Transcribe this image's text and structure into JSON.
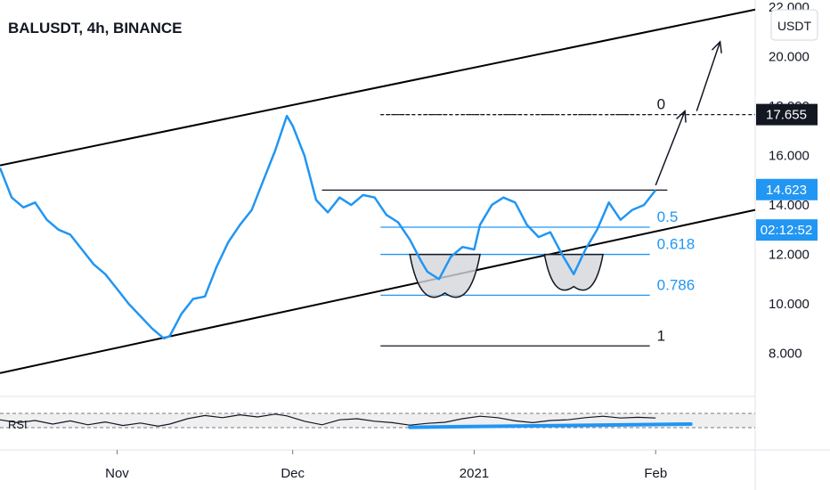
{
  "chart_data": {
    "type": "line",
    "title": "BALUSDT, 4h, BINANCE",
    "currency": "USDT",
    "ylim": [
      6.4,
      22.0
    ],
    "xlim": [
      "2020-10-12",
      "2021-02-18"
    ],
    "yticks": [
      {
        "v": 8,
        "label": "8.000"
      },
      {
        "v": 10,
        "label": "10.000"
      },
      {
        "v": 12,
        "label": "12.000"
      },
      {
        "v": 14,
        "label": "14.000"
      },
      {
        "v": 16,
        "label": "16.000"
      },
      {
        "v": 18,
        "label": "18.000"
      },
      {
        "v": 20,
        "label": "20.000"
      },
      {
        "v": 22,
        "label": "22.000"
      }
    ],
    "xticks": [
      {
        "date": "2020-11-01",
        "label": "Nov"
      },
      {
        "date": "2020-12-01",
        "label": "Dec"
      },
      {
        "date": "2021-01-01",
        "label": "2021"
      },
      {
        "date": "2021-02-01",
        "label": "Feb"
      }
    ],
    "series": [
      {
        "color": "#2196f3",
        "points": [
          [
            "2020-10-12",
            15.5
          ],
          [
            "2020-10-14",
            14.3
          ],
          [
            "2020-10-16",
            13.9
          ],
          [
            "2020-10-18",
            14.1
          ],
          [
            "2020-10-20",
            13.4
          ],
          [
            "2020-10-22",
            13.0
          ],
          [
            "2020-10-24",
            12.8
          ],
          [
            "2020-10-26",
            12.2
          ],
          [
            "2020-10-28",
            11.6
          ],
          [
            "2020-10-30",
            11.2
          ],
          [
            "2020-11-01",
            10.6
          ],
          [
            "2020-11-03",
            10.0
          ],
          [
            "2020-11-05",
            9.5
          ],
          [
            "2020-11-07",
            9.0
          ],
          [
            "2020-11-09",
            8.6
          ],
          [
            "2020-11-10",
            8.7
          ],
          [
            "2020-11-12",
            9.6
          ],
          [
            "2020-11-14",
            10.2
          ],
          [
            "2020-11-16",
            10.3
          ],
          [
            "2020-11-18",
            11.5
          ],
          [
            "2020-11-20",
            12.5
          ],
          [
            "2020-11-22",
            13.2
          ],
          [
            "2020-11-24",
            13.8
          ],
          [
            "2020-11-26",
            15.0
          ],
          [
            "2020-11-28",
            16.2
          ],
          [
            "2020-11-30",
            17.6
          ],
          [
            "2020-12-01",
            17.2
          ],
          [
            "2020-12-03",
            16.0
          ],
          [
            "2020-12-05",
            14.2
          ],
          [
            "2020-12-07",
            13.7
          ],
          [
            "2020-12-09",
            14.3
          ],
          [
            "2020-12-11",
            14.0
          ],
          [
            "2020-12-13",
            14.4
          ],
          [
            "2020-12-15",
            14.3
          ],
          [
            "2020-12-17",
            13.6
          ],
          [
            "2020-12-19",
            13.3
          ],
          [
            "2020-12-21",
            12.6
          ],
          [
            "2020-12-23",
            11.7
          ],
          [
            "2020-12-24",
            11.3
          ],
          [
            "2020-12-26",
            11.0
          ],
          [
            "2020-12-28",
            11.9
          ],
          [
            "2020-12-30",
            12.3
          ],
          [
            "2021-01-01",
            12.2
          ],
          [
            "2021-01-02",
            13.2
          ],
          [
            "2021-01-04",
            14.0
          ],
          [
            "2021-01-06",
            14.3
          ],
          [
            "2021-01-08",
            14.1
          ],
          [
            "2021-01-10",
            13.2
          ],
          [
            "2021-01-12",
            12.7
          ],
          [
            "2021-01-14",
            12.9
          ],
          [
            "2021-01-16",
            12.0
          ],
          [
            "2021-01-18",
            11.2
          ],
          [
            "2021-01-20",
            12.2
          ],
          [
            "2021-01-22",
            13.0
          ],
          [
            "2021-01-24",
            14.1
          ],
          [
            "2021-01-26",
            13.4
          ],
          [
            "2021-01-28",
            13.8
          ],
          [
            "2021-01-30",
            14.0
          ],
          [
            "2021-02-01",
            14.6
          ]
        ]
      }
    ],
    "rsi": {
      "label": "RSI",
      "ylim": [
        0,
        100
      ],
      "band": [
        30,
        70
      ],
      "points": [
        [
          "2020-10-12",
          52
        ],
        [
          "2020-10-15",
          44
        ],
        [
          "2020-10-18",
          50
        ],
        [
          "2020-10-21",
          40
        ],
        [
          "2020-10-24",
          49
        ],
        [
          "2020-10-27",
          38
        ],
        [
          "2020-10-30",
          46
        ],
        [
          "2020-11-02",
          36
        ],
        [
          "2020-11-05",
          43
        ],
        [
          "2020-11-08",
          34
        ],
        [
          "2020-11-10",
          40
        ],
        [
          "2020-11-13",
          55
        ],
        [
          "2020-11-16",
          64
        ],
        [
          "2020-11-19",
          58
        ],
        [
          "2020-11-22",
          66
        ],
        [
          "2020-11-25",
          60
        ],
        [
          "2020-11-28",
          68
        ],
        [
          "2020-11-30",
          63
        ],
        [
          "2020-12-03",
          48
        ],
        [
          "2020-12-06",
          38
        ],
        [
          "2020-12-09",
          52
        ],
        [
          "2020-12-12",
          55
        ],
        [
          "2020-12-15",
          48
        ],
        [
          "2020-12-18",
          44
        ],
        [
          "2020-12-21",
          37
        ],
        [
          "2020-12-24",
          42
        ],
        [
          "2020-12-27",
          45
        ],
        [
          "2020-12-30",
          55
        ],
        [
          "2021-01-02",
          62
        ],
        [
          "2021-01-05",
          58
        ],
        [
          "2021-01-08",
          49
        ],
        [
          "2021-01-11",
          44
        ],
        [
          "2021-01-14",
          50
        ],
        [
          "2021-01-17",
          52
        ],
        [
          "2021-01-20",
          58
        ],
        [
          "2021-01-23",
          62
        ],
        [
          "2021-01-26",
          57
        ],
        [
          "2021-01-29",
          59
        ],
        [
          "2021-02-01",
          57
        ]
      ]
    },
    "price_tags": [
      {
        "value": 17.655,
        "label": "17.655",
        "bg": "#131722"
      },
      {
        "value": 14.623,
        "label": "14.623",
        "bg": "#2196f3"
      },
      {
        "value": 13.6,
        "label": "02:12:52",
        "bg": "#2196f3"
      }
    ],
    "channel": {
      "color": "#000000",
      "upper": [
        [
          "2020-10-12",
          15.6
        ],
        [
          "2021-02-18",
          21.9
        ]
      ],
      "lower": [
        [
          "2020-10-12",
          7.2
        ],
        [
          "2021-02-18",
          13.8
        ]
      ]
    },
    "fibonacci": [
      {
        "label": "0",
        "value": 17.655,
        "color": "#131722",
        "dashed": true
      },
      {
        "label": "0.5",
        "value": 13.1,
        "color": "#2196f3"
      },
      {
        "label": "0.618",
        "value": 12.0,
        "color": "#2196f3"
      },
      {
        "label": "0.786",
        "value": 10.35,
        "color": "#2196f3"
      },
      {
        "label": "1",
        "value": 8.3,
        "color": "#131722"
      }
    ],
    "neckline": {
      "from": "2020-12-06",
      "to": "2021-02-03",
      "value": 14.6
    },
    "dashed_target": {
      "from": "2020-12-16",
      "to": "2021-02-18",
      "value": 17.655
    },
    "rsi_trendline": [
      [
        "2020-12-21",
        31
      ],
      [
        "2021-02-07",
        40
      ]
    ],
    "arrows": [
      {
        "from": [
          "2021-02-01",
          14.8
        ],
        "to": [
          "2021-02-06",
          17.8
        ]
      },
      {
        "from": [
          "2021-02-08",
          17.8
        ],
        "to": [
          "2021-02-12",
          20.6
        ]
      }
    ],
    "cups": [
      {
        "center": "2020-12-27",
        "half_width_days": 6,
        "top": 12.0,
        "bottom": 10.8
      },
      {
        "center": "2021-01-18",
        "half_width_days": 5,
        "top": 12.0,
        "bottom": 11.0
      }
    ]
  }
}
